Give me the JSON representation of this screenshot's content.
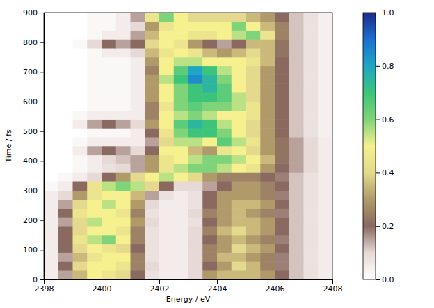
{
  "chart_data": {
    "type": "heatmap",
    "x_label": "Energy / eV",
    "y_label": "Time / fs",
    "xlim": [
      2398,
      2408
    ],
    "xticks": [
      2398,
      2400,
      2402,
      2404,
      2406,
      2408
    ],
    "ylim": [
      0,
      900
    ],
    "yticks": [
      0,
      100,
      200,
      300,
      400,
      500,
      600,
      700,
      800,
      900
    ],
    "clim": [
      0,
      1
    ],
    "cticks": [
      {
        "value": 0,
        "label": "0.0"
      },
      0.2,
      0.4,
      0.6,
      0.8,
      {
        "value": 1,
        "label": "1.0"
      }
    ],
    "x": [
      2398.25,
      2398.75,
      2399.25,
      2399.75,
      2400.25,
      2400.75,
      2401.25,
      2401.75,
      2402.25,
      2402.75,
      2403.25,
      2403.75,
      2404.25,
      2404.75,
      2405.25,
      2405.75,
      2406.25,
      2406.75,
      2407.25,
      2407.75
    ],
    "y": [
      15,
      45,
      75,
      105,
      135,
      165,
      195,
      225,
      255,
      285,
      315,
      345,
      375,
      405,
      435,
      465,
      495,
      525,
      555,
      585,
      615,
      645,
      675,
      705,
      735,
      765,
      795,
      825,
      855,
      885
    ],
    "values": [
      [
        0.05,
        0.15,
        0.35,
        0.5,
        0.45,
        0.4,
        0.2,
        0.08,
        0.05,
        0.05,
        0.1,
        0.3,
        0.35,
        0.35,
        0.35,
        0.3,
        0.2,
        0.12,
        0.08,
        0.05
      ],
      [
        0.05,
        0.2,
        0.4,
        0.5,
        0.5,
        0.45,
        0.25,
        0.1,
        0.05,
        0.05,
        0.1,
        0.2,
        0.3,
        0.4,
        0.35,
        0.25,
        0.18,
        0.12,
        0.08,
        0.05
      ],
      [
        0.05,
        0.15,
        0.35,
        0.45,
        0.5,
        0.5,
        0.25,
        0.08,
        0.05,
        0.05,
        0.1,
        0.25,
        0.35,
        0.35,
        0.3,
        0.25,
        0.18,
        0.12,
        0.08,
        0.05
      ],
      [
        0.05,
        0.2,
        0.4,
        0.5,
        0.45,
        0.4,
        0.2,
        0.08,
        0.05,
        0.05,
        0.1,
        0.25,
        0.3,
        0.4,
        0.35,
        0.3,
        0.2,
        0.12,
        0.08,
        0.05
      ],
      [
        0.05,
        0.2,
        0.45,
        0.55,
        0.6,
        0.5,
        0.25,
        0.08,
        0.05,
        0.05,
        0.1,
        0.2,
        0.3,
        0.35,
        0.3,
        0.25,
        0.18,
        0.12,
        0.08,
        0.05
      ],
      [
        0.05,
        0.2,
        0.4,
        0.5,
        0.5,
        0.45,
        0.25,
        0.08,
        0.05,
        0.05,
        0.1,
        0.25,
        0.35,
        0.4,
        0.35,
        0.3,
        0.2,
        0.12,
        0.08,
        0.05
      ],
      [
        0.05,
        0.15,
        0.4,
        0.55,
        0.5,
        0.5,
        0.3,
        0.1,
        0.05,
        0.05,
        0.08,
        0.2,
        0.3,
        0.35,
        0.35,
        0.3,
        0.2,
        0.12,
        0.08,
        0.05
      ],
      [
        0.05,
        0.2,
        0.45,
        0.5,
        0.5,
        0.45,
        0.25,
        0.08,
        0.05,
        0.05,
        0.1,
        0.25,
        0.3,
        0.35,
        0.3,
        0.25,
        0.18,
        0.12,
        0.08,
        0.05
      ],
      [
        0.05,
        0.15,
        0.4,
        0.5,
        0.55,
        0.5,
        0.3,
        0.1,
        0.05,
        0.05,
        0.08,
        0.2,
        0.3,
        0.35,
        0.35,
        0.3,
        0.2,
        0.12,
        0.08,
        0.05
      ],
      [
        0.05,
        0.1,
        0.3,
        0.45,
        0.5,
        0.5,
        0.35,
        0.15,
        0.08,
        0.05,
        0.08,
        0.2,
        0.3,
        0.3,
        0.3,
        0.25,
        0.18,
        0.12,
        0.08,
        0.05
      ],
      [
        0.02,
        0.05,
        0.2,
        0.45,
        0.55,
        0.6,
        0.55,
        0.4,
        0.2,
        0.1,
        0.1,
        0.15,
        0.2,
        0.3,
        0.3,
        0.25,
        0.2,
        0.12,
        0.08,
        0.05
      ],
      [
        0,
        0.02,
        0.05,
        0.1,
        0.2,
        0.3,
        0.4,
        0.5,
        0.55,
        0.5,
        0.4,
        0.3,
        0.25,
        0.25,
        0.25,
        0.2,
        0.18,
        0.12,
        0.08,
        0.05
      ],
      [
        0,
        0,
        0.02,
        0.05,
        0.08,
        0.1,
        0.15,
        0.3,
        0.45,
        0.55,
        0.6,
        0.6,
        0.55,
        0.5,
        0.45,
        0.3,
        0.2,
        0.15,
        0.1,
        0.05
      ],
      [
        0,
        0,
        0.02,
        0.05,
        0.1,
        0.12,
        0.15,
        0.3,
        0.45,
        0.5,
        0.55,
        0.6,
        0.6,
        0.55,
        0.5,
        0.35,
        0.22,
        0.15,
        0.1,
        0.05
      ],
      [
        0,
        0,
        0.05,
        0.15,
        0.2,
        0.15,
        0.1,
        0.2,
        0.5,
        0.5,
        0.35,
        0.3,
        0.45,
        0.5,
        0.4,
        0.3,
        0.22,
        0.15,
        0.1,
        0.05
      ],
      [
        0,
        0,
        0.02,
        0.05,
        0.05,
        0.05,
        0.05,
        0.15,
        0.4,
        0.55,
        0.55,
        0.5,
        0.65,
        0.55,
        0.45,
        0.3,
        0.22,
        0.15,
        0.1,
        0.05
      ],
      [
        0,
        0,
        0,
        0.02,
        0.02,
        0.02,
        0.05,
        0.2,
        0.45,
        0.6,
        0.7,
        0.7,
        0.6,
        0.5,
        0.4,
        0.3,
        0.2,
        0.12,
        0.08,
        0.04
      ],
      [
        0,
        0,
        0.05,
        0.15,
        0.2,
        0.15,
        0.1,
        0.3,
        0.5,
        0.65,
        0.75,
        0.7,
        0.55,
        0.5,
        0.4,
        0.3,
        0.2,
        0.12,
        0.08,
        0.04
      ],
      [
        0,
        0,
        0.02,
        0.05,
        0.05,
        0.05,
        0.05,
        0.25,
        0.5,
        0.55,
        0.6,
        0.55,
        0.5,
        0.5,
        0.45,
        0.3,
        0.2,
        0.12,
        0.08,
        0.04
      ],
      [
        0,
        0,
        0,
        0.02,
        0.02,
        0.02,
        0.05,
        0.25,
        0.45,
        0.6,
        0.65,
        0.6,
        0.6,
        0.55,
        0.45,
        0.3,
        0.2,
        0.12,
        0.08,
        0.04
      ],
      [
        0,
        0,
        0,
        0.02,
        0.02,
        0.02,
        0.05,
        0.3,
        0.5,
        0.6,
        0.7,
        0.7,
        0.65,
        0.55,
        0.4,
        0.3,
        0.2,
        0.12,
        0.08,
        0.04
      ],
      [
        0,
        0,
        0,
        0.02,
        0.02,
        0.02,
        0.05,
        0.3,
        0.5,
        0.6,
        0.7,
        0.75,
        0.65,
        0.5,
        0.4,
        0.3,
        0.2,
        0.12,
        0.08,
        0.04
      ],
      [
        0,
        0,
        0,
        0.02,
        0.02,
        0.02,
        0.05,
        0.3,
        0.55,
        0.7,
        0.85,
        0.75,
        0.6,
        0.5,
        0.4,
        0.3,
        0.2,
        0.12,
        0.08,
        0.04
      ],
      [
        0,
        0,
        0,
        0.02,
        0.02,
        0.02,
        0.05,
        0.25,
        0.5,
        0.65,
        0.8,
        0.7,
        0.55,
        0.5,
        0.4,
        0.3,
        0.2,
        0.12,
        0.08,
        0.04
      ],
      [
        0,
        0,
        0,
        0.02,
        0.02,
        0.02,
        0.05,
        0.3,
        0.5,
        0.55,
        0.55,
        0.5,
        0.5,
        0.5,
        0.45,
        0.35,
        0.2,
        0.12,
        0.08,
        0.04
      ],
      [
        0,
        0,
        0,
        0.02,
        0.05,
        0.05,
        0.1,
        0.35,
        0.45,
        0.5,
        0.45,
        0.35,
        0.3,
        0.35,
        0.4,
        0.35,
        0.22,
        0.12,
        0.08,
        0.04
      ],
      [
        0,
        0,
        0.02,
        0.1,
        0.2,
        0.15,
        0.2,
        0.4,
        0.5,
        0.45,
        0.3,
        0.2,
        0.15,
        0.2,
        0.35,
        0.35,
        0.22,
        0.12,
        0.08,
        0.04
      ],
      [
        0,
        0,
        0,
        0.02,
        0.05,
        0.05,
        0.15,
        0.35,
        0.5,
        0.5,
        0.45,
        0.45,
        0.5,
        0.55,
        0.6,
        0.45,
        0.25,
        0.12,
        0.08,
        0.04
      ],
      [
        0,
        0,
        0,
        0.02,
        0.02,
        0.05,
        0.1,
        0.3,
        0.45,
        0.5,
        0.5,
        0.5,
        0.5,
        0.6,
        0.5,
        0.35,
        0.25,
        0.12,
        0.08,
        0.04
      ],
      [
        0,
        0,
        0,
        0.02,
        0.02,
        0.05,
        0.15,
        0.45,
        0.6,
        0.5,
        0.4,
        0.4,
        0.4,
        0.4,
        0.35,
        0.3,
        0.2,
        0.12,
        0.08,
        0.04
      ]
    ]
  }
}
